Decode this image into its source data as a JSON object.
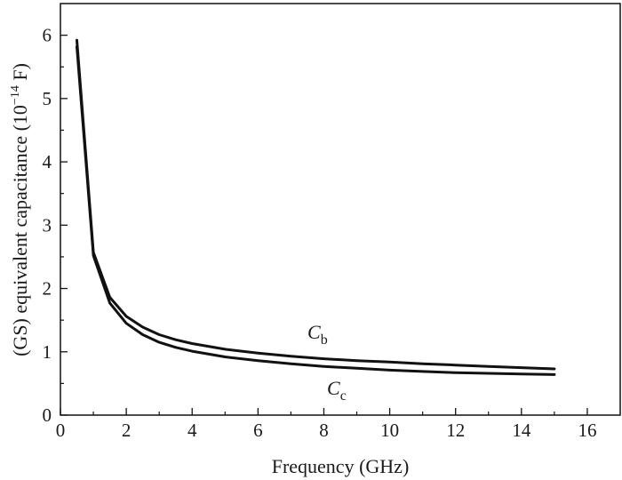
{
  "chart_data": {
    "type": "line",
    "xlabel": "Frequency (GHz)",
    "ylabel": {
      "prefix": "(GS) equivalent capacitance (10",
      "exponent": "−14",
      "suffix": " F)"
    },
    "xlim": [
      0,
      17
    ],
    "ylim": [
      0,
      6.5
    ],
    "xticks": [
      0,
      2,
      4,
      6,
      8,
      10,
      12,
      14,
      16
    ],
    "yticks": [
      0,
      1,
      2,
      3,
      4,
      5,
      6
    ],
    "grid": false,
    "legend": "none",
    "line_color": "#111111",
    "series": [
      {
        "name": "C_b",
        "label_main": "C",
        "label_sub": "b",
        "x": [
          0.5,
          1,
          1.5,
          2,
          2.5,
          3,
          3.5,
          4,
          5,
          6,
          7,
          8,
          9,
          10,
          11,
          12,
          13,
          14,
          15
        ],
        "values": [
          5.92,
          2.57,
          1.86,
          1.56,
          1.39,
          1.27,
          1.19,
          1.13,
          1.04,
          0.98,
          0.93,
          0.89,
          0.86,
          0.84,
          0.81,
          0.79,
          0.77,
          0.75,
          0.73
        ]
      },
      {
        "name": "C_c",
        "label_main": "C",
        "label_sub": "c",
        "x": [
          0.5,
          1,
          1.5,
          2,
          2.5,
          3,
          3.5,
          4,
          5,
          6,
          7,
          8,
          9,
          10,
          11,
          12,
          13,
          14,
          15
        ],
        "values": [
          5.82,
          2.52,
          1.77,
          1.45,
          1.27,
          1.15,
          1.07,
          1.01,
          0.92,
          0.86,
          0.81,
          0.77,
          0.74,
          0.71,
          0.69,
          0.67,
          0.66,
          0.65,
          0.64
        ]
      }
    ]
  }
}
